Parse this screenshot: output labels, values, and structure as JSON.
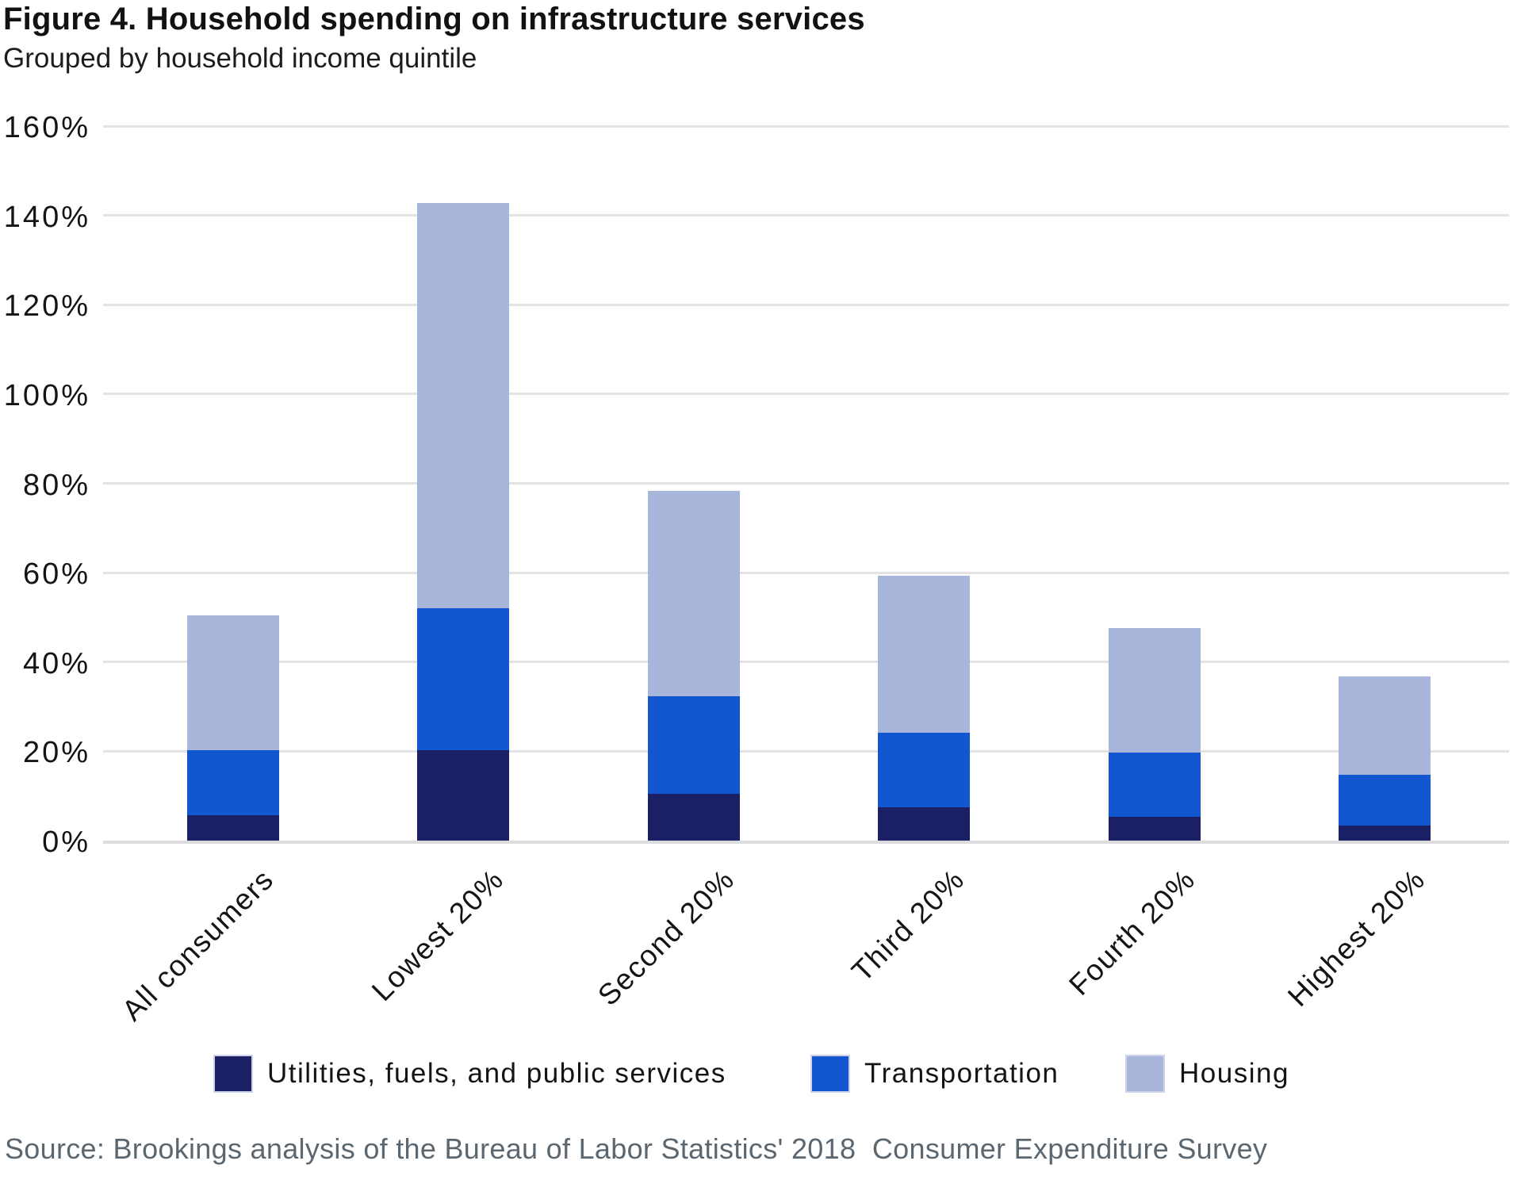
{
  "header": {
    "title": "Figure 4. Household spending on infrastructure services",
    "subtitle": "Grouped by household income quintile"
  },
  "footer": {
    "source": "Source: Brookings analysis of the Bureau of Labor Statistics' 2018  Consumer Expenditure Survey",
    "source_color": "#5b6770"
  },
  "chart_data": {
    "type": "bar",
    "stacked": true,
    "title": "Figure 4. Household spending on infrastructure services",
    "subtitle": "Grouped by household income quintile",
    "xlabel": "",
    "ylabel": "",
    "categories": [
      "All consumers",
      "Lowest 20%",
      "Second 20%",
      "Third 20%",
      "Fourth 20%",
      "Highest 20%"
    ],
    "series": [
      {
        "key": "utilities",
        "name": "Utilities, fuels, and public services",
        "color": "#1b2065",
        "values": [
          5.7,
          20.3,
          10.5,
          7.5,
          5.4,
          3.4
        ]
      },
      {
        "key": "transportation",
        "name": "Transportation",
        "color": "#1257d0",
        "values": [
          14.5,
          31.8,
          21.9,
          16.7,
          14.4,
          11.4
        ]
      },
      {
        "key": "housing",
        "name": "Housing",
        "color": "#a9b6db",
        "values": [
          30.2,
          90.7,
          46.0,
          35.2,
          27.8,
          22.0
        ]
      }
    ],
    "stack_totals": [
      50.4,
      142.8,
      78.4,
      59.4,
      47.6,
      36.8
    ],
    "ylim": [
      0,
      160
    ],
    "yticks": [
      "0%",
      "20%",
      "40%",
      "60%",
      "80%",
      "100%",
      "120%",
      "140%",
      "160%"
    ],
    "grid": true,
    "gridline_color": "#e3e3e5",
    "baseline_color": "#dcdcdf",
    "legend_position": "bottom",
    "x_tick_rotation_deg": -45
  }
}
